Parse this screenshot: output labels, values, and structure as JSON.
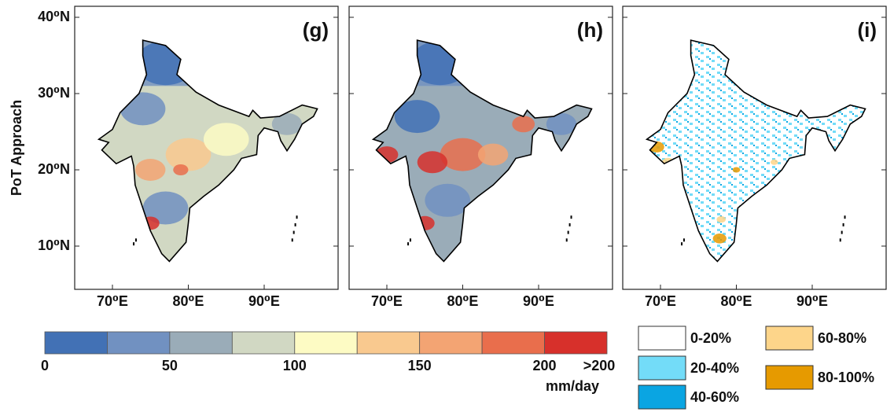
{
  "y_axis_label": "PoT Approach",
  "panels": [
    {
      "label": "(g)"
    },
    {
      "label": "(h)"
    },
    {
      "label": "(i)"
    }
  ],
  "lat_ticks": [
    "40⁰N",
    "30⁰N",
    "20⁰N",
    "10⁰N"
  ],
  "lon_ticks": [
    "70⁰E",
    "80⁰E",
    "90⁰E"
  ],
  "colorbar": {
    "colors": [
      "#4271b5",
      "#7191c1",
      "#9aacb8",
      "#d1d8c3",
      "#fdfbc4",
      "#f9c98f",
      "#f3a473",
      "#e96e4c",
      "#d7302b"
    ],
    "ticks": [
      "0",
      "50",
      "100",
      "150",
      "200",
      ">200"
    ],
    "unit": "mm/day"
  },
  "legend": [
    {
      "label": "0-20%",
      "color": "#ffffff"
    },
    {
      "label": "20-40%",
      "color": "#73dcf8"
    },
    {
      "label": "40-60%",
      "color": "#0aa5e2"
    },
    {
      "label": "60-80%",
      "color": "#fdd58a"
    },
    {
      "label": "80-100%",
      "color": "#e69a00"
    }
  ]
}
